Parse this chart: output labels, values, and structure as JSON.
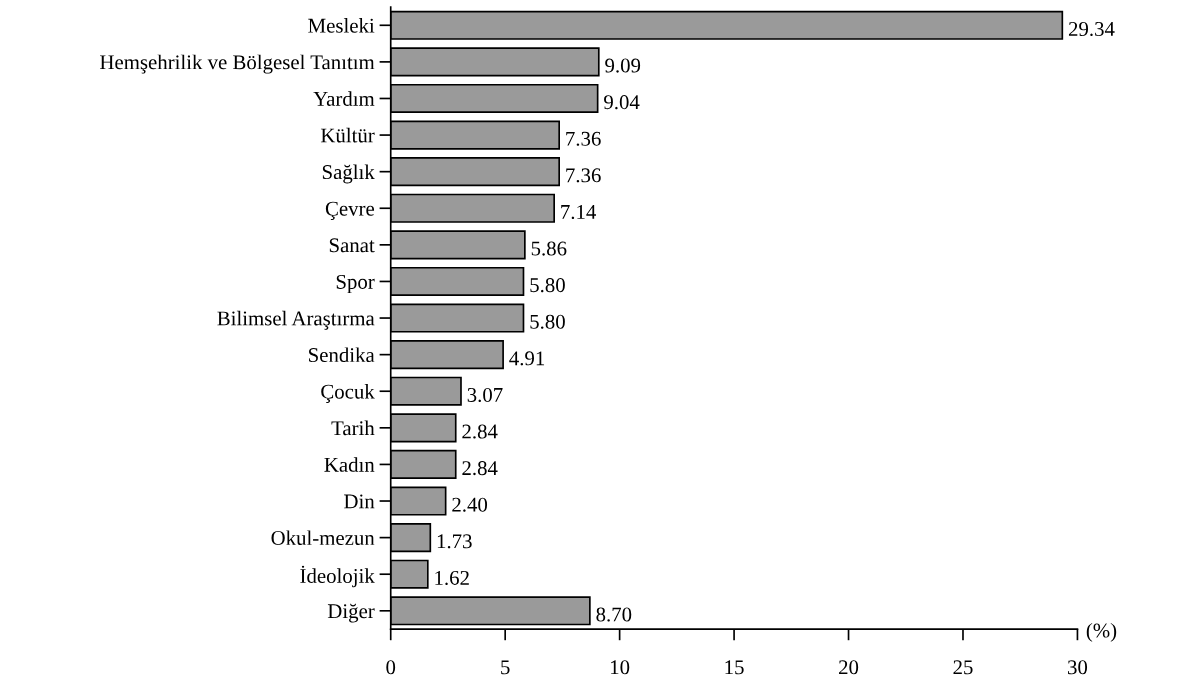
{
  "chart_data": {
    "type": "bar",
    "orientation": "horizontal",
    "xlabel": "(%)",
    "categories": [
      "Mesleki",
      "Hemşehrilik ve Bölgesel Tanıtım",
      "Yardım",
      "Kültür",
      "Sağlık",
      "Çevre",
      "Sanat",
      "Spor",
      "Bilimsel Araştırma",
      "Sendika",
      "Çocuk",
      "Tarih",
      "Kadın",
      "Din",
      "Okul-mezun",
      "İdeolojik",
      "Diğer"
    ],
    "values": [
      29.34,
      9.09,
      9.04,
      7.36,
      7.36,
      7.14,
      5.86,
      5.8,
      5.8,
      4.91,
      3.07,
      2.84,
      2.84,
      2.4,
      1.73,
      1.62,
      8.7
    ],
    "value_labels": [
      "29.34",
      "9.09",
      "9.04",
      "7.36",
      "7.36",
      "7.14",
      "5.86",
      "5.80",
      "5.80",
      "4.91",
      "3.07",
      "2.84",
      "2.84",
      "2.40",
      "1.73",
      "1.62",
      "8.70"
    ],
    "color": "#9a9a9a",
    "xlim": [
      0,
      30
    ],
    "xticks": [
      0,
      5,
      10,
      15,
      20,
      25,
      30
    ],
    "grid": false
  }
}
